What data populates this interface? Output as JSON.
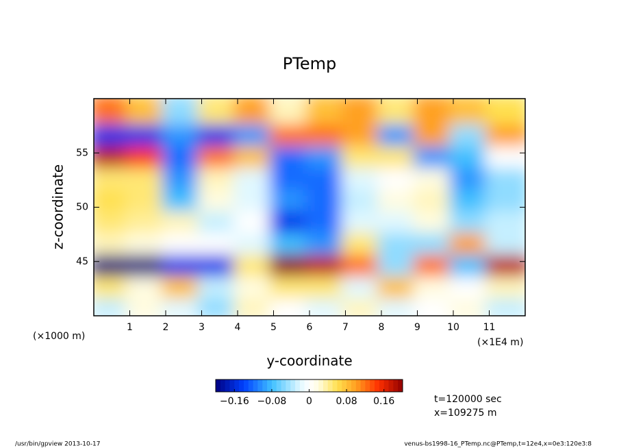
{
  "chart_data": {
    "type": "contour",
    "title": "PTemp",
    "xlabel": "y-coordinate",
    "ylabel": "z-coordinate",
    "xunit": "(×1E4 m)",
    "yunit": "(×1000 m)",
    "annotations": [
      "t=120000 sec",
      "x=109275 m"
    ],
    "footer_left": "/usr/bin/gpview  2013-10-17",
    "footer_right": "venus-bs1998-16_PTemp.nc@PTemp,t=12e4,x=0e3:120e3:8",
    "xlim": [
      0,
      12
    ],
    "xticks": [
      1,
      2,
      3,
      4,
      5,
      6,
      7,
      8,
      9,
      10,
      11
    ],
    "ylim": [
      40,
      60
    ],
    "yticks": [
      45,
      50,
      55
    ],
    "clim": [
      -0.2,
      0.2
    ],
    "cticks": [
      {
        "value": -0.16,
        "label": "−0.16"
      },
      {
        "value": -0.08,
        "label": "−0.08"
      },
      0,
      0.08,
      0.16
    ],
    "x": [
      0.5,
      1.5,
      2.5,
      3.5,
      4.5,
      5.5,
      6.5,
      7.5,
      8.5,
      9.5,
      10.5,
      11.5
    ],
    "y": [
      41,
      43,
      45,
      47,
      49,
      51,
      53,
      55,
      57,
      59
    ],
    "z": [
      [
        -0.03,
        0.02,
        -0.02,
        -0.05,
        0.03,
        0.0,
        -0.02,
        0.03,
        -0.02,
        0.0,
        0.02,
        -0.03
      ],
      [
        0.05,
        0.02,
        0.08,
        -0.03,
        0.02,
        0.05,
        0.05,
        -0.02,
        0.08,
        0.02,
        0.0,
        0.03
      ],
      [
        -0.2,
        -0.2,
        -0.15,
        -0.15,
        0.05,
        0.2,
        0.18,
        0.12,
        -0.05,
        0.12,
        -0.08,
        0.18
      ],
      [
        0.03,
        0.02,
        0.0,
        0.0,
        -0.02,
        -0.08,
        -0.1,
        0.05,
        -0.05,
        -0.05,
        0.1,
        -0.03
      ],
      [
        0.05,
        0.04,
        0.03,
        -0.03,
        0.0,
        -0.15,
        -0.12,
        -0.02,
        -0.02,
        0.02,
        -0.05,
        -0.03
      ],
      [
        0.06,
        0.05,
        -0.08,
        0.02,
        -0.02,
        -0.1,
        -0.12,
        -0.03,
        0.02,
        0.03,
        -0.08,
        -0.05
      ],
      [
        0.05,
        0.05,
        -0.1,
        0.03,
        -0.02,
        -0.12,
        -0.12,
        -0.02,
        0.0,
        0.02,
        -0.1,
        -0.05
      ],
      [
        0.18,
        0.15,
        -0.12,
        0.12,
        0.08,
        -0.12,
        -0.1,
        0.05,
        0.05,
        -0.1,
        -0.08,
        0.0
      ],
      [
        -0.15,
        -0.15,
        -0.1,
        -0.15,
        -0.1,
        0.12,
        0.12,
        0.1,
        -0.1,
        0.1,
        -0.05,
        0.1
      ],
      [
        0.12,
        0.08,
        -0.05,
        0.05,
        0.1,
        0.03,
        0.08,
        0.1,
        0.05,
        0.1,
        0.08,
        0.06
      ]
    ]
  }
}
